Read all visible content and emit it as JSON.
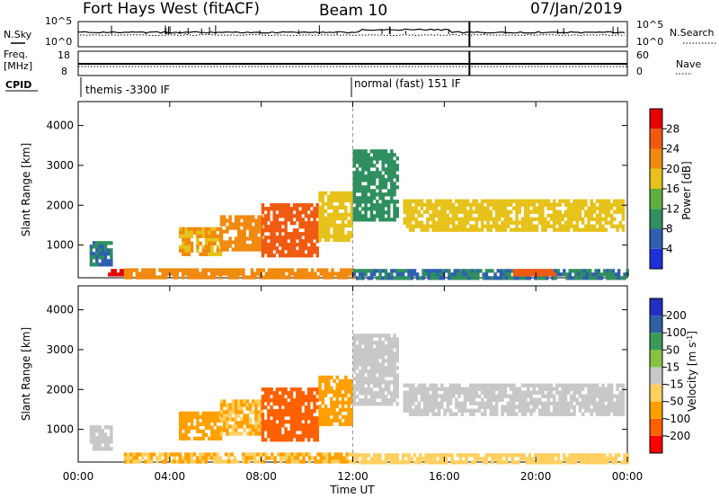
{
  "header": {
    "title": "Fort Hays West (fitACF)",
    "beam": "Beam 10",
    "date": "07/Jan/2019"
  },
  "summary_panels": {
    "nsky_label": "N.Sky",
    "nsearch_label": "N.Search",
    "freq_label_line1": "Freq.",
    "freq_label_line2": "[MHz]",
    "nave_label": "Nave",
    "cpid_label": "CPID",
    "noise_ticks": [
      "10^5",
      "10^0"
    ],
    "freq_ticks": [
      "18",
      "8"
    ],
    "nave_ticks": [
      "60",
      "0"
    ],
    "cpid_modes": [
      {
        "name": "themis -3300 IF",
        "start_hour": 0
      },
      {
        "name": "normal (fast) 151 IF",
        "start_hour": 12.0
      }
    ]
  },
  "colors": {
    "power": [
      "#1f2fd8",
      "#2f5fb0",
      "#2f8f5f",
      "#5faf3f",
      "#e6c21a",
      "#f08a10",
      "#f05a10",
      "#e60000"
    ],
    "velocity": [
      "#ff0000",
      "#ff6000",
      "#ffa000",
      "#ffd060",
      "#c8c8c8",
      "#88c040",
      "#3a9a58",
      "#3060a0",
      "#2030c0"
    ]
  },
  "chart_data": [
    {
      "type": "heatmap",
      "name": "power",
      "xlabel": "",
      "ylabel": "Slant Range [km]",
      "x_ticks": [
        "00:00",
        "04:00",
        "08:00",
        "12:00",
        "16:00",
        "20:00",
        "00:00"
      ],
      "xlim_hours": [
        0,
        24
      ],
      "y_ticks": [
        1000,
        2000,
        3000,
        4000
      ],
      "ylim_km": [
        180,
        4600
      ],
      "colorbar": {
        "label": "Power [dB]",
        "range": [
          0,
          32
        ],
        "ticks": [
          4,
          8,
          12,
          16,
          20,
          24,
          28
        ]
      },
      "regions": [
        {
          "t0": 0.5,
          "t1": 1.5,
          "r0": 500,
          "r1": 1100,
          "level": 8
        },
        {
          "t0": 1.3,
          "t1": 2.1,
          "r0": 230,
          "r1": 400,
          "level": 30
        },
        {
          "t0": 4.4,
          "t1": 6.2,
          "r0": 750,
          "r1": 1450,
          "level": 20
        },
        {
          "t0": 6.2,
          "t1": 8.0,
          "r0": 850,
          "r1": 1750,
          "level": 22
        },
        {
          "t0": 8.0,
          "t1": 10.5,
          "r0": 750,
          "r1": 2050,
          "level": 26
        },
        {
          "t0": 10.5,
          "t1": 12.0,
          "r0": 1100,
          "r1": 2350,
          "level": 18
        },
        {
          "t0": 12.0,
          "t1": 14.0,
          "r0": 1600,
          "r1": 3400,
          "level": 10
        },
        {
          "t0": 14.2,
          "t1": 23.8,
          "r0": 1350,
          "r1": 2150,
          "level": 18
        },
        {
          "t0": 2.0,
          "t1": 12.0,
          "r0": 230,
          "r1": 420,
          "level": 22
        },
        {
          "t0": 12.0,
          "t1": 24.0,
          "r0": 200,
          "r1": 400,
          "level": 8
        },
        {
          "t0": 19.0,
          "t1": 20.8,
          "r0": 240,
          "r1": 400,
          "level": 26
        }
      ]
    },
    {
      "type": "heatmap",
      "name": "velocity",
      "xlabel": "Time UT",
      "ylabel": "Slant Range [km]",
      "x_ticks": [
        "00:00",
        "04:00",
        "08:00",
        "12:00",
        "16:00",
        "20:00",
        "00:00"
      ],
      "xlim_hours": [
        0,
        24
      ],
      "y_ticks": [
        1000,
        2000,
        3000,
        4000
      ],
      "ylim_km": [
        180,
        4600
      ],
      "colorbar": {
        "label": "Velocity [m s^-1]",
        "range": [
          -250,
          250
        ],
        "ticks": [
          -200,
          -100,
          -50,
          -15,
          15,
          50,
          100,
          200
        ]
      },
      "regions": [
        {
          "t0": 0.5,
          "t1": 1.5,
          "r0": 500,
          "r1": 1100,
          "level": 0
        },
        {
          "t0": 4.4,
          "t1": 6.2,
          "r0": 750,
          "r1": 1450,
          "level": -60
        },
        {
          "t0": 6.2,
          "t1": 8.0,
          "r0": 850,
          "r1": 1750,
          "level": -50
        },
        {
          "t0": 8.0,
          "t1": 10.5,
          "r0": 750,
          "r1": 2050,
          "level": -120
        },
        {
          "t0": 10.5,
          "t1": 12.0,
          "r0": 1100,
          "r1": 2350,
          "level": -70
        },
        {
          "t0": 12.0,
          "t1": 14.0,
          "r0": 1600,
          "r1": 3400,
          "level": 0
        },
        {
          "t0": 14.2,
          "t1": 23.8,
          "r0": 1350,
          "r1": 2150,
          "level": 0
        },
        {
          "t0": 2.0,
          "t1": 12.0,
          "r0": 230,
          "r1": 420,
          "level": -50
        },
        {
          "t0": 12.0,
          "t1": 24.0,
          "r0": 200,
          "r1": 400,
          "level": -30
        }
      ]
    }
  ]
}
